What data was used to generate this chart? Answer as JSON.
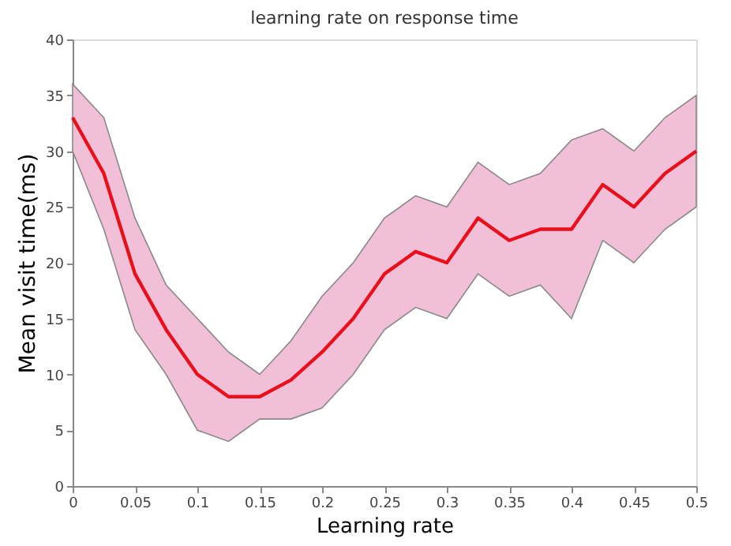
{
  "chart_data": {
    "type": "line",
    "title": "learning rate on response time",
    "xlabel": "Learning rate",
    "ylabel": "Mean visit time(ms)",
    "x": [
      0,
      0.025,
      0.05,
      0.075,
      0.1,
      0.125,
      0.15,
      0.175,
      0.2,
      0.225,
      0.25,
      0.275,
      0.3,
      0.325,
      0.35,
      0.375,
      0.4,
      0.425,
      0.45,
      0.475,
      0.5
    ],
    "series": [
      {
        "color": "#e8101a",
        "values": [
          33,
          28,
          19,
          14,
          10,
          8,
          8,
          9.5,
          12,
          15,
          19,
          21,
          20,
          24,
          22,
          23,
          23,
          27,
          25,
          28,
          30
        ],
        "upper": [
          36,
          33,
          24,
          18,
          15,
          12,
          10,
          13,
          17,
          20,
          24,
          26,
          25,
          29,
          27,
          28,
          31,
          32,
          30,
          33,
          35
        ],
        "lower": [
          30,
          23,
          14,
          10,
          5,
          4,
          6,
          6,
          7,
          10,
          14,
          16,
          15,
          19,
          17,
          18,
          15,
          22,
          20,
          23,
          25
        ]
      }
    ],
    "xlim": [
      0,
      0.5
    ],
    "xticks": [
      0,
      0.05,
      0.1,
      0.15,
      0.2,
      0.25,
      0.3,
      0.35,
      0.4,
      0.45,
      0.5
    ],
    "ylim": [
      0,
      40
    ],
    "yticks": [
      0,
      5,
      10,
      15,
      20,
      25,
      30,
      35,
      40
    ],
    "grid": false,
    "marker": "none",
    "line_style": "solid"
  }
}
